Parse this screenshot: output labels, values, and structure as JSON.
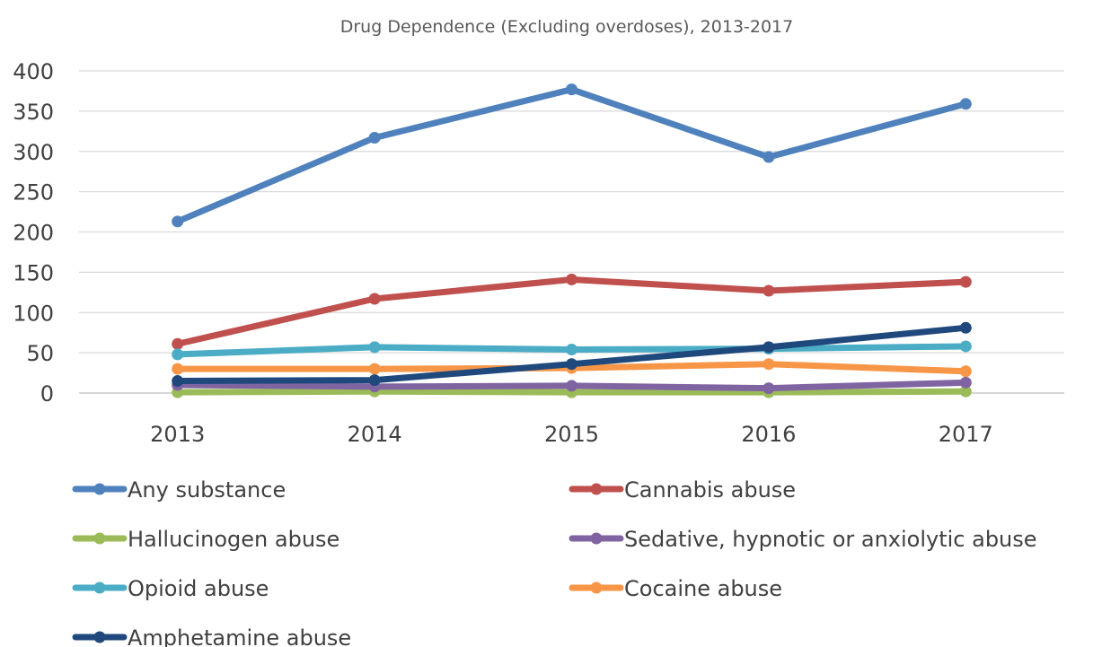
{
  "chart_data": {
    "type": "line",
    "title": "Drug Dependence (Excluding overdoses), 2013-2017",
    "xlabel": "",
    "ylabel": "",
    "categories": [
      "2013",
      "2014",
      "2015",
      "2016",
      "2017"
    ],
    "ylim": [
      0,
      400
    ],
    "yticks": [
      "0",
      "50",
      "100",
      "150",
      "200",
      "250",
      "300",
      "350",
      "400"
    ],
    "grid": true,
    "legend_position": "bottom",
    "series": [
      {
        "name": "Any substance",
        "color": "#4f81bd",
        "values": [
          213,
          317,
          377,
          293,
          359
        ]
      },
      {
        "name": "Cannabis abuse",
        "color": "#c0504d",
        "values": [
          61,
          117,
          141,
          127,
          138
        ]
      },
      {
        "name": "Hallucinogen abuse",
        "color": "#9bbb59",
        "values": [
          1,
          2,
          1,
          1,
          2
        ]
      },
      {
        "name": "Sedative, hypnotic or anxiolytic abuse",
        "color": "#8064a2",
        "values": [
          10,
          8,
          9,
          6,
          13
        ]
      },
      {
        "name": "Opioid abuse",
        "color": "#4bacc6",
        "values": [
          48,
          57,
          54,
          55,
          58
        ]
      },
      {
        "name": "Cocaine abuse",
        "color": "#f79646",
        "values": [
          30,
          30,
          31,
          36,
          27
        ]
      },
      {
        "name": "Amphetamine abuse",
        "color": "#1f497d",
        "values": [
          15,
          16,
          36,
          57,
          81
        ]
      }
    ]
  }
}
